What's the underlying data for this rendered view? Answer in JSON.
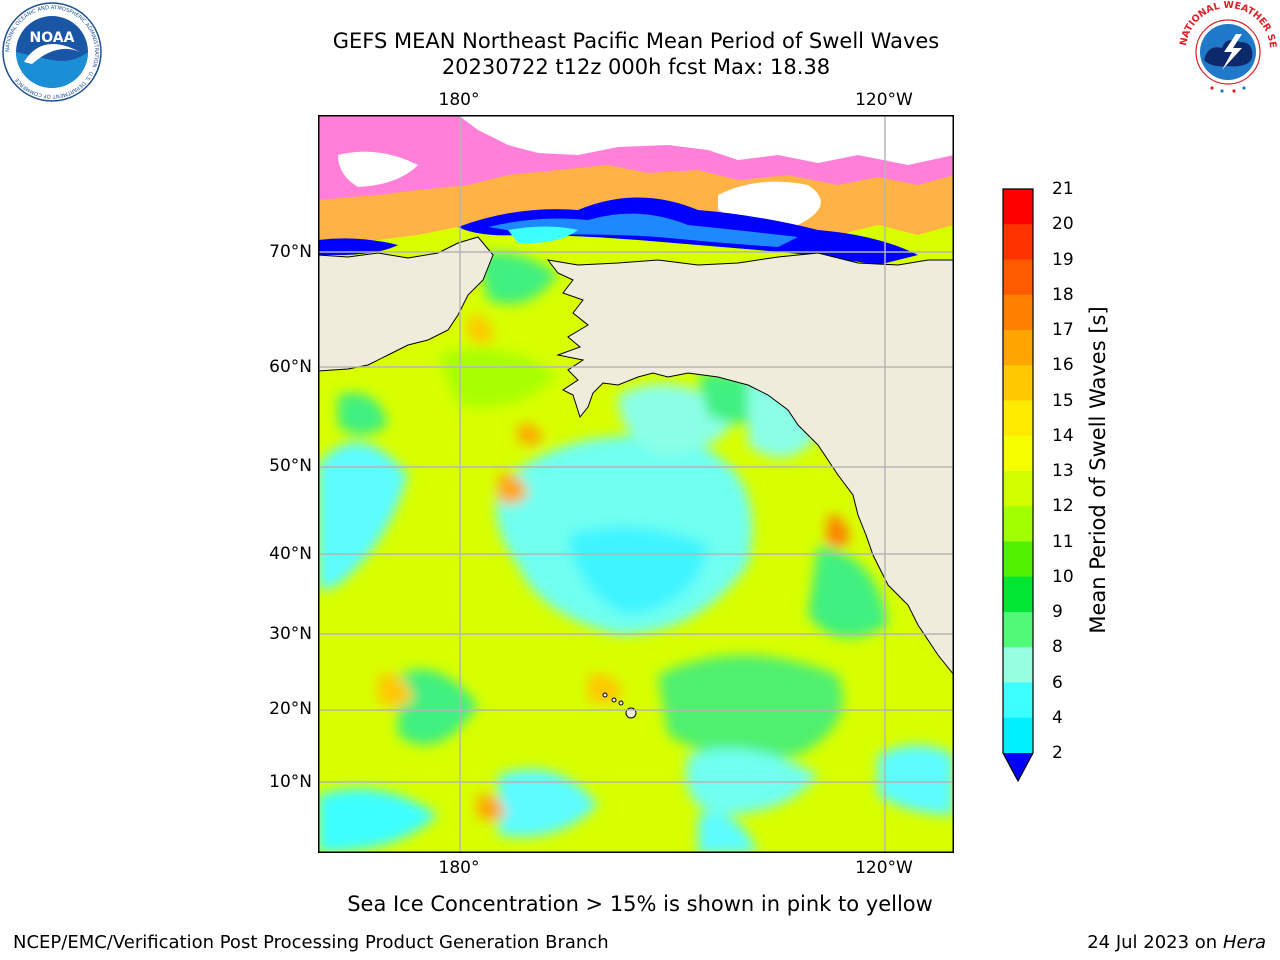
{
  "title": {
    "line1": "GEFS MEAN Northeast Pacific Mean Period of Swell Waves",
    "line2": "20230722 t12z 000h fcst   Max: 18.38"
  },
  "map": {
    "top_lon_labels": [
      "180°",
      "120°W"
    ],
    "bottom_lon_labels": [
      "180°",
      "120°W"
    ],
    "lat_labels": [
      "70°N",
      "60°N",
      "50°N",
      "40°N",
      "30°N",
      "20°N",
      "10°N"
    ],
    "land_color": "#efecdb",
    "coast_color": "#000000",
    "grid_color": "#b5b5b5"
  },
  "colorbar": {
    "label": "Mean Period of Swell Waves [s]",
    "ticks": [
      "21",
      "20",
      "19",
      "18",
      "17",
      "16",
      "15",
      "14",
      "13",
      "12",
      "11",
      "10",
      "9",
      "8",
      "6",
      "4",
      "2"
    ],
    "colors": [
      "#ff0000",
      "#ff3300",
      "#ff5a00",
      "#ff8000",
      "#ffa500",
      "#ffc800",
      "#ffeb00",
      "#f5ff00",
      "#d2ff00",
      "#a0ff00",
      "#50f000",
      "#00e632",
      "#50fa78",
      "#96ffe1",
      "#3cffff",
      "#00f0ff",
      "#00b4ff",
      "#0050ff"
    ],
    "extend_color": "#0000ff"
  },
  "caption": "Sea Ice Concentration > 15% is shown in pink to yellow",
  "footer": {
    "left": "NCEP/EMC/Verification Post Processing Product Generation Branch",
    "right_prefix": "24 Jul 2023 on ",
    "right_host": "Hera"
  },
  "logos": {
    "noaa": "NOAA",
    "noaa_ring": "NATIONAL OCEANIC AND ATMOSPHERIC ADMINISTRATION · U.S. DEPARTMENT OF COMMERCE",
    "nws_ring": "NATIONAL WEATHER SERVICE"
  }
}
